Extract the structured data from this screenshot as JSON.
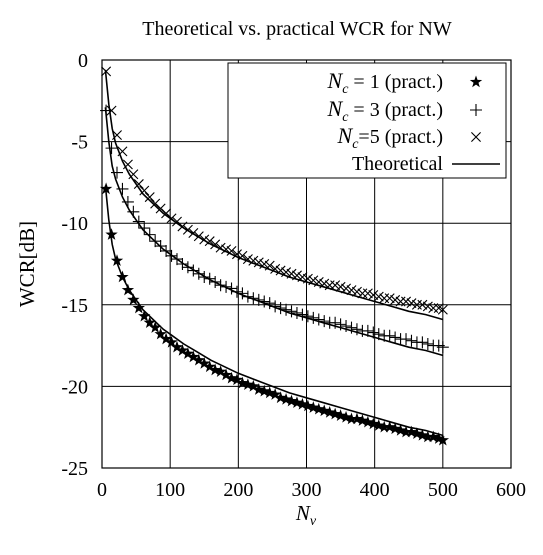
{
  "chart_data": {
    "type": "line",
    "title": "Theoretical vs. practical WCR for NW",
    "xlabel_base": "N",
    "xlabel_sub": "v",
    "ylabel": "WCR[dB]",
    "xlim": [
      0,
      600
    ],
    "ylim": [
      -25,
      0
    ],
    "xticks": [
      "0",
      "100",
      "200",
      "300",
      "400",
      "500",
      "600"
    ],
    "yticks": [
      "0",
      "-5",
      "-10",
      "-15",
      "-20",
      "-25"
    ],
    "grid": true,
    "legend_position": "top-right",
    "series": [
      {
        "legend_base": "N",
        "legend_sub": "c",
        "legend_rest": " = 1 (pract.)",
        "marker": "star",
        "x": [
          6,
          14,
          22,
          30,
          38,
          46,
          54,
          62,
          70,
          78,
          86,
          94,
          102,
          110,
          118,
          126,
          134,
          142,
          150,
          158,
          166,
          174,
          182,
          190,
          198,
          206,
          214,
          222,
          230,
          238,
          246,
          254,
          262,
          270,
          278,
          286,
          294,
          302,
          310,
          318,
          326,
          334,
          342,
          350,
          358,
          366,
          374,
          382,
          390,
          398,
          406,
          414,
          422,
          430,
          438,
          446,
          454,
          462,
          470,
          478,
          486,
          494,
          500
        ],
        "y": [
          -7.9,
          -10.7,
          -12.3,
          -13.3,
          -14.1,
          -14.7,
          -15.2,
          -15.7,
          -16.1,
          -16.4,
          -16.8,
          -17.1,
          -17.3,
          -17.6,
          -17.8,
          -18.0,
          -18.2,
          -18.4,
          -18.6,
          -18.8,
          -19.0,
          -19.1,
          -19.3,
          -19.5,
          -19.6,
          -19.8,
          -19.9,
          -20.0,
          -20.2,
          -20.3,
          -20.4,
          -20.5,
          -20.7,
          -20.8,
          -20.9,
          -21.0,
          -21.1,
          -21.2,
          -21.3,
          -21.4,
          -21.5,
          -21.6,
          -21.7,
          -21.8,
          -21.9,
          -22.0,
          -22.0,
          -22.1,
          -22.2,
          -22.3,
          -22.4,
          -22.5,
          -22.5,
          -22.6,
          -22.7,
          -22.8,
          -22.8,
          -22.9,
          -23.0,
          -23.1,
          -23.1,
          -23.2,
          -23.3
        ]
      },
      {
        "legend_base": "N",
        "legend_sub": "c",
        "legend_rest": " = 3 (pract.)",
        "marker": "plus",
        "x": [
          6,
          14,
          22,
          30,
          38,
          46,
          54,
          62,
          70,
          78,
          86,
          94,
          102,
          110,
          118,
          126,
          134,
          142,
          150,
          158,
          166,
          174,
          182,
          190,
          198,
          206,
          214,
          222,
          230,
          238,
          246,
          254,
          262,
          270,
          278,
          286,
          294,
          302,
          310,
          318,
          326,
          334,
          342,
          350,
          358,
          366,
          374,
          382,
          390,
          398,
          406,
          414,
          422,
          430,
          438,
          446,
          454,
          462,
          470,
          478,
          486,
          494,
          500
        ],
        "y": [
          -3.1,
          -5.4,
          -6.9,
          -7.9,
          -8.7,
          -9.3,
          -9.9,
          -10.3,
          -10.7,
          -11.1,
          -11.4,
          -11.7,
          -12.0,
          -12.2,
          -12.5,
          -12.7,
          -12.9,
          -13.1,
          -13.3,
          -13.4,
          -13.6,
          -13.8,
          -13.9,
          -14.0,
          -14.2,
          -14.3,
          -14.5,
          -14.6,
          -14.7,
          -14.8,
          -14.9,
          -15.1,
          -15.2,
          -15.3,
          -15.4,
          -15.5,
          -15.6,
          -15.7,
          -15.8,
          -15.9,
          -16.0,
          -16.1,
          -16.1,
          -16.2,
          -16.3,
          -16.4,
          -16.5,
          -16.6,
          -16.6,
          -16.7,
          -16.8,
          -16.9,
          -16.9,
          -17.0,
          -17.1,
          -17.1,
          -17.2,
          -17.3,
          -17.3,
          -17.4,
          -17.5,
          -17.5,
          -17.6
        ]
      },
      {
        "legend_base": "N",
        "legend_sub": "c",
        "legend_rest": "=5 (pract.)",
        "marker": "cross",
        "x": [
          6,
          14,
          22,
          30,
          38,
          46,
          54,
          62,
          70,
          78,
          86,
          94,
          102,
          110,
          118,
          126,
          134,
          142,
          150,
          158,
          166,
          174,
          182,
          190,
          198,
          206,
          214,
          222,
          230,
          238,
          246,
          254,
          262,
          270,
          278,
          286,
          294,
          302,
          310,
          318,
          326,
          334,
          342,
          350,
          358,
          366,
          374,
          382,
          390,
          398,
          406,
          414,
          422,
          430,
          438,
          446,
          454,
          462,
          470,
          478,
          486,
          494,
          500
        ],
        "y": [
          -0.7,
          -3.1,
          -4.6,
          -5.6,
          -6.4,
          -7.0,
          -7.6,
          -8.0,
          -8.4,
          -8.8,
          -9.1,
          -9.4,
          -9.7,
          -9.9,
          -10.2,
          -10.4,
          -10.6,
          -10.8,
          -11.0,
          -11.1,
          -11.3,
          -11.5,
          -11.6,
          -11.7,
          -11.9,
          -12.0,
          -12.2,
          -12.3,
          -12.4,
          -12.5,
          -12.6,
          -12.8,
          -12.9,
          -13.0,
          -13.1,
          -13.2,
          -13.3,
          -13.4,
          -13.5,
          -13.6,
          -13.7,
          -13.8,
          -13.8,
          -13.9,
          -14.0,
          -14.1,
          -14.2,
          -14.3,
          -14.3,
          -14.4,
          -14.5,
          -14.6,
          -14.6,
          -14.7,
          -14.8,
          -14.8,
          -14.9,
          -15.0,
          -15.0,
          -15.1,
          -15.2,
          -15.2,
          -15.3
        ]
      }
    ],
    "theoretical": {
      "legend": "Theoretical",
      "x": [
        5,
        10,
        15,
        20,
        30,
        40,
        50,
        60,
        70,
        80,
        90,
        100,
        120,
        140,
        160,
        180,
        200,
        225,
        250,
        275,
        300,
        325,
        350,
        375,
        400,
        425,
        450,
        475,
        500
      ],
      "curves": [
        [
          -7.7,
          -9.8,
          -11.3,
          -12.2,
          -13.3,
          -14.1,
          -14.7,
          -15.3,
          -15.7,
          -16.1,
          -16.5,
          -16.8,
          -17.4,
          -17.9,
          -18.4,
          -18.8,
          -19.2,
          -19.6,
          -20.0,
          -20.4,
          -20.7,
          -21.0,
          -21.3,
          -21.6,
          -21.9,
          -22.2,
          -22.5,
          -22.7,
          -23.0
        ],
        [
          -2.9,
          -5.0,
          -6.5,
          -7.3,
          -8.4,
          -9.2,
          -9.8,
          -10.4,
          -10.8,
          -11.2,
          -11.6,
          -11.9,
          -12.5,
          -13.0,
          -13.5,
          -13.9,
          -14.3,
          -14.7,
          -15.1,
          -15.5,
          -15.8,
          -16.1,
          -16.4,
          -16.7,
          -17.0,
          -17.3,
          -17.6,
          -17.8,
          -18.1
        ],
        [
          -0.6,
          -2.7,
          -4.2,
          -5.1,
          -6.2,
          -7.0,
          -7.6,
          -8.2,
          -8.6,
          -9.0,
          -9.4,
          -9.7,
          -10.3,
          -10.8,
          -11.3,
          -11.7,
          -12.1,
          -12.5,
          -12.9,
          -13.3,
          -13.6,
          -13.9,
          -14.2,
          -14.5,
          -14.8,
          -15.1,
          -15.4,
          -15.6,
          -15.9
        ]
      ]
    }
  }
}
